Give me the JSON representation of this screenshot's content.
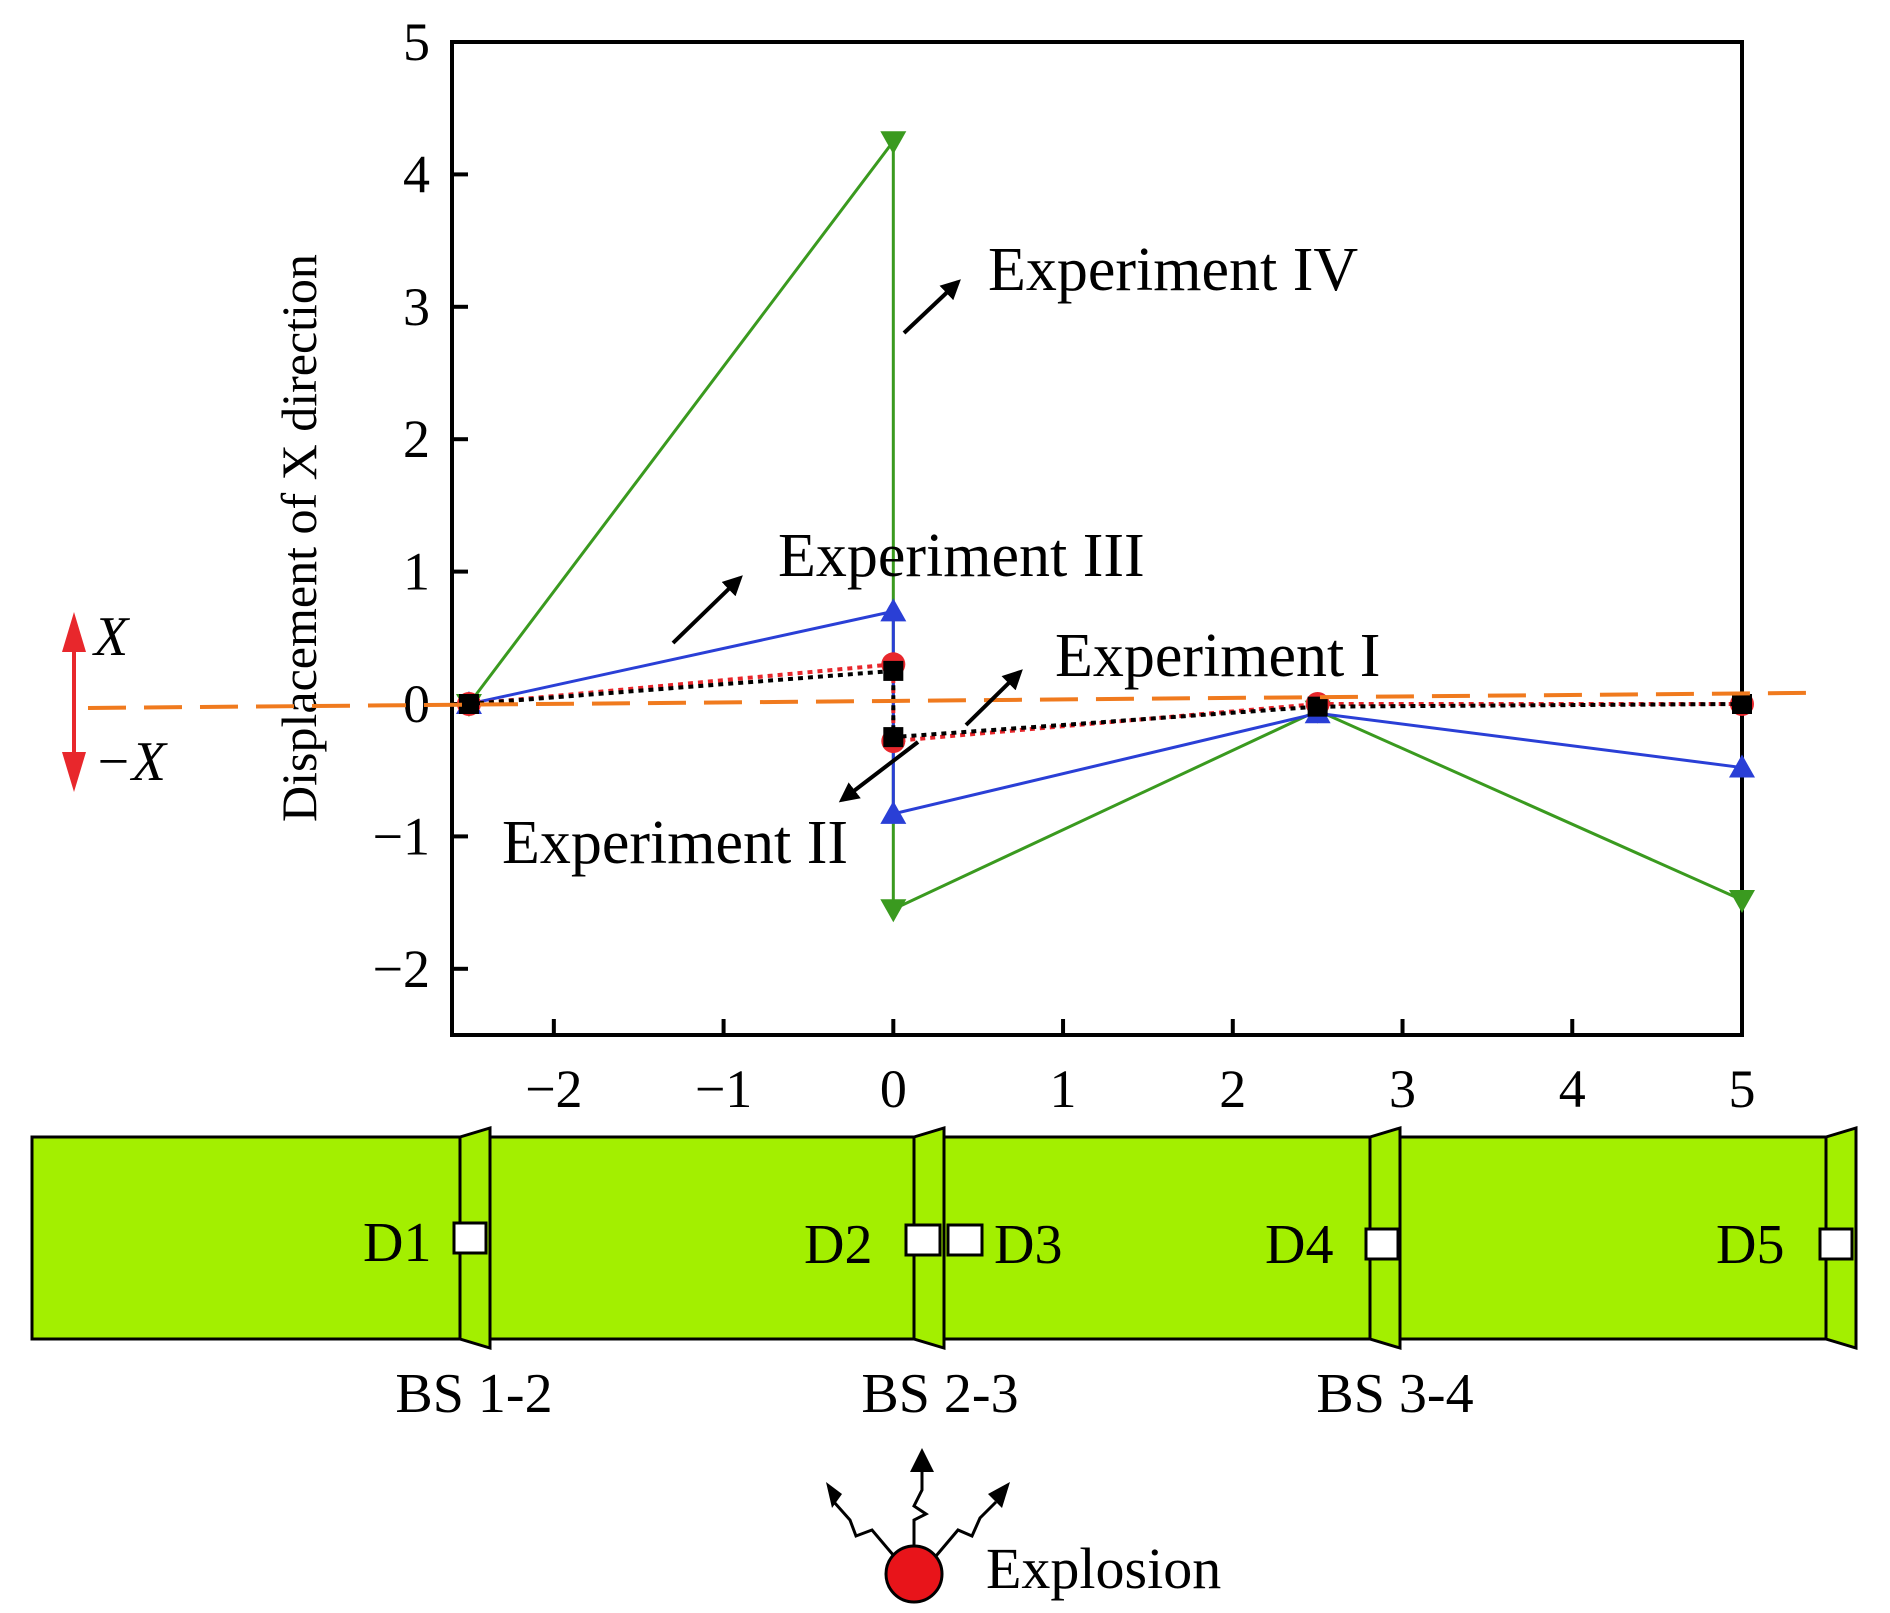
{
  "chart_data": {
    "type": "line",
    "title": "",
    "xlabel": "",
    "ylabel": "Displacement of X direction",
    "xlim": [
      -2.6,
      5
    ],
    "ylim": [
      -2.5,
      5
    ],
    "xticks": [
      -2,
      -1,
      0,
      1,
      2,
      3,
      4,
      5
    ],
    "yticks": [
      -2,
      -1,
      0,
      1,
      2,
      3,
      4,
      5
    ],
    "xtick_labels": [
      "−2",
      "−1",
      "0",
      "1",
      "2",
      "3",
      "4",
      "5"
    ],
    "ytick_labels": [
      "−2",
      "−1",
      "0",
      "1",
      "2",
      "3",
      "4",
      "5"
    ],
    "grid": false,
    "series": [
      {
        "name": "Experiment I",
        "color": "#000000",
        "marker": "square",
        "dash": "dotted",
        "x": [
          -2.5,
          0,
          0,
          2.5,
          5
        ],
        "y": [
          0,
          0.25,
          -0.25,
          -0.02,
          0.0
        ]
      },
      {
        "name": "Experiment II",
        "color": "#e8272c",
        "marker": "circle",
        "dash": "dotted",
        "x": [
          -2.5,
          0,
          0,
          2.5,
          5
        ],
        "y": [
          0,
          0.3,
          -0.28,
          0.0,
          0.0
        ]
      },
      {
        "name": "Experiment III",
        "color": "#2a3fd6",
        "marker": "triangle-up",
        "dash": "solid",
        "x": [
          -2.5,
          0,
          0,
          2.5,
          5
        ],
        "y": [
          0,
          0.7,
          -0.83,
          -0.07,
          -0.48
        ]
      },
      {
        "name": "Experiment IV",
        "color": "#3a9a1f",
        "marker": "triangle-down",
        "dash": "solid",
        "x": [
          -2.5,
          0,
          0,
          2.5,
          5
        ],
        "y": [
          0,
          4.25,
          -1.55,
          -0.05,
          -1.48
        ]
      }
    ],
    "reference_line": {
      "style": "dashed",
      "color": "#f07a1e",
      "y_left": 0,
      "y_right": 0.1
    },
    "annotations": [
      {
        "text": "Experiment IV",
        "series": "Experiment IV"
      },
      {
        "text": "Experiment III",
        "series": "Experiment III"
      },
      {
        "text": "Experiment I",
        "series": "Experiment I"
      },
      {
        "text": "Experiment II",
        "series": "Experiment II"
      }
    ]
  },
  "direction_indicator": {
    "positive": "X",
    "negative": "−X",
    "color": "#e8272c"
  },
  "segments": {
    "fill_color": "#a3ef00",
    "detectors": [
      "D1",
      "D2",
      "D3",
      "D4",
      "D5"
    ],
    "block_stations": [
      "BS 1-2",
      "BS 2-3",
      "BS 3-4"
    ]
  },
  "explosion": {
    "label": "Explosion",
    "color": "#e8141a"
  }
}
